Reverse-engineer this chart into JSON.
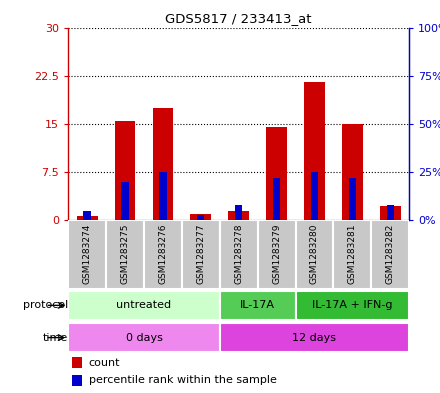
{
  "title": "GDS5817 / 233413_at",
  "samples": [
    "GSM1283274",
    "GSM1283275",
    "GSM1283276",
    "GSM1283277",
    "GSM1283278",
    "GSM1283279",
    "GSM1283280",
    "GSM1283281",
    "GSM1283282"
  ],
  "counts": [
    0.7,
    15.5,
    17.5,
    1.0,
    1.5,
    14.5,
    21.5,
    15.0,
    2.2
  ],
  "percentile_rank": [
    5,
    20,
    25,
    3,
    8,
    22,
    25,
    22,
    8
  ],
  "ylim_left": [
    0,
    30
  ],
  "ylim_right": [
    0,
    100
  ],
  "yticks_left": [
    0,
    7.5,
    15,
    22.5,
    30
  ],
  "yticks_right": [
    0,
    25,
    50,
    75,
    100
  ],
  "bar_color_red": "#cc0000",
  "bar_color_blue": "#0000cc",
  "bar_width": 0.55,
  "protocols": [
    {
      "label": "untreated",
      "start": 0,
      "end": 4,
      "color": "#ccffcc"
    },
    {
      "label": "IL-17A",
      "start": 4,
      "end": 6,
      "color": "#55cc55"
    },
    {
      "label": "IL-17A + IFN-g",
      "start": 6,
      "end": 9,
      "color": "#33bb33"
    }
  ],
  "times": [
    {
      "label": "0 days",
      "start": 0,
      "end": 4,
      "color": "#ee88ee"
    },
    {
      "label": "12 days",
      "start": 4,
      "end": 9,
      "color": "#dd44dd"
    }
  ],
  "grid_color": "black",
  "bg_labels": "#c8c8c8",
  "left_axis_color": "#cc0000",
  "right_axis_color": "#0000cc",
  "legend_count": "count",
  "legend_percentile": "percentile rank within the sample",
  "protocol_label": "protocol",
  "time_label": "time"
}
